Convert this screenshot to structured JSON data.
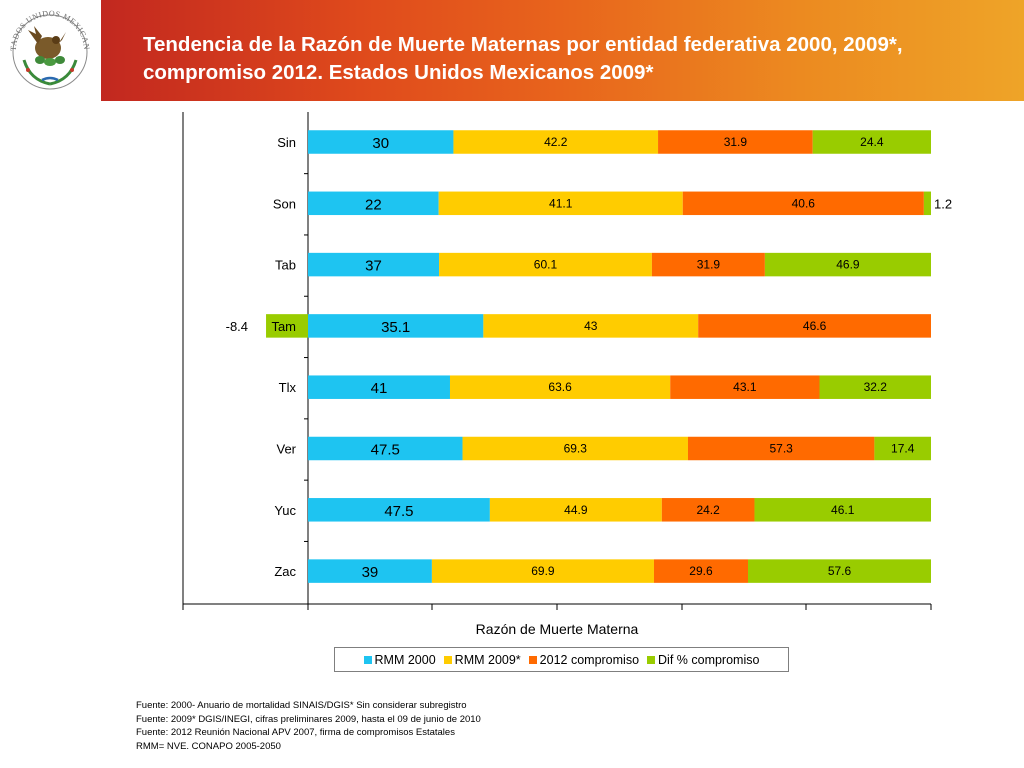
{
  "header": {
    "title": "Tendencia de la Razón de Muerte Maternas por entidad federativa 2000, 2009*, compromiso 2012. Estados Unidos Mexicanos 2009*",
    "logo_text": "ESTADOS UNIDOS MEXICANOS"
  },
  "chart_data": {
    "type": "bar",
    "orientation": "horizontal",
    "stacked": true,
    "categories": [
      "Sin",
      "Son",
      "Tab",
      "Tam",
      "Tlx",
      "Ver",
      "Yuc",
      "Zac"
    ],
    "series": [
      {
        "name": "RMM 2000",
        "color": "#1ec4f1",
        "values": [
          30,
          22,
          37,
          35.1,
          41,
          47.5,
          47.5,
          39
        ]
      },
      {
        "name": "RMM 2009*",
        "color": "#ffcc00",
        "values": [
          42.2,
          41.1,
          60.1,
          43,
          63.6,
          69.3,
          44.9,
          69.9
        ]
      },
      {
        "name": "2012  compromiso",
        "color": "#ff6a00",
        "values": [
          31.9,
          40.6,
          31.9,
          46.6,
          43.1,
          57.3,
          24.2,
          29.6
        ]
      },
      {
        "name": "Dif % compromiso",
        "color": "#99cc00",
        "values": [
          24.4,
          1.2,
          46.9,
          -8.4,
          32.2,
          17.4,
          46.1,
          57.6
        ]
      }
    ],
    "value_labels": {
      "RMM 2000": [
        "30",
        "22",
        "37",
        "35.1",
        "41",
        "47.5",
        "47.5",
        "39"
      ],
      "RMM 2009*": [
        "42.2",
        "41.1",
        "60.1",
        "43",
        "63.6",
        "69.3",
        "44.9",
        "69.9"
      ],
      "2012  compromiso": [
        "31.9",
        "40.6",
        "31.9",
        "46.6",
        "43.1",
        "57.3",
        "24.2",
        "29.6"
      ],
      "Dif % compromiso": [
        "24.4",
        "1.2",
        "46.9",
        "-8.4",
        "32.2",
        "17.4",
        "46.1",
        "57.6"
      ]
    },
    "xlabel": "Razón de Muerte Materna",
    "ylabel": "",
    "grid": false,
    "legend_position": "bottom"
  },
  "footer": {
    "lines": [
      "Fuente: 2000- Anuario de mortalidad SINAIS/DGIS* Sin considerar subregistro",
      "Fuente: 2009* DGIS/INEGI, cifras preliminares 2009, hasta el 09 de junio de 2010",
      "Fuente: 2012 Reunión Nacional APV 2007, firma de compromisos Estatales",
      "RMM= NVE. CONAPO 2005-2050"
    ]
  }
}
